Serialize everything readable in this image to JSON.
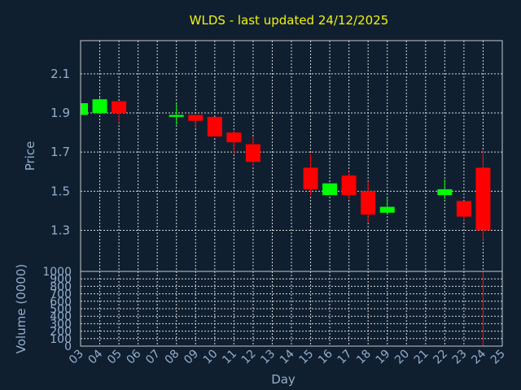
{
  "chart_data": {
    "type": "candlestick",
    "title": "WLDS - last updated 24/12/2025",
    "xlabel": "Day",
    "price_panel": {
      "ylabel": "Price",
      "yticks": [
        "2.1",
        "1.9",
        "1.7",
        "1.5",
        "1.3"
      ],
      "ylim": [
        1.09,
        2.27
      ],
      "grid": true
    },
    "volume_panel": {
      "ylabel": "Volume (0000)",
      "yticks": [
        "1000",
        "900",
        "800",
        "700",
        "600",
        "500",
        "400",
        "300",
        "200",
        "100",
        "0"
      ],
      "ylim": [
        0,
        1000
      ],
      "grid": true
    },
    "x_ticks": [
      "03",
      "04",
      "05",
      "06",
      "07",
      "08",
      "09",
      "10",
      "11",
      "12",
      "13",
      "14",
      "15",
      "16",
      "17",
      "18",
      "19",
      "20",
      "21",
      "22",
      "23",
      "24",
      "25"
    ],
    "up_color": "#00ff00",
    "down_color": "#ff0000",
    "candles": [
      {
        "day": 3,
        "open": 1.89,
        "high": 1.95,
        "low": 1.89,
        "close": 1.95
      },
      {
        "day": 4,
        "open": 1.9,
        "high": 1.98,
        "low": 1.9,
        "close": 1.97
      },
      {
        "day": 5,
        "open": 1.96,
        "high": 1.96,
        "low": 1.85,
        "close": 1.9
      },
      {
        "day": 8,
        "open": 1.88,
        "high": 1.95,
        "low": 1.84,
        "close": 1.89
      },
      {
        "day": 9,
        "open": 1.89,
        "high": 1.89,
        "low": 1.82,
        "close": 1.86
      },
      {
        "day": 10,
        "open": 1.88,
        "high": 1.88,
        "low": 1.78,
        "close": 1.78
      },
      {
        "day": 11,
        "open": 1.8,
        "high": 1.81,
        "low": 1.69,
        "close": 1.75
      },
      {
        "day": 12,
        "open": 1.74,
        "high": 1.78,
        "low": 1.63,
        "close": 1.65
      },
      {
        "day": 15,
        "open": 1.62,
        "high": 1.69,
        "low": 1.48,
        "close": 1.51
      },
      {
        "day": 16,
        "open": 1.48,
        "high": 1.54,
        "low": 1.48,
        "close": 1.54
      },
      {
        "day": 17,
        "open": 1.58,
        "high": 1.6,
        "low": 1.46,
        "close": 1.48
      },
      {
        "day": 18,
        "open": 1.5,
        "high": 1.55,
        "low": 1.34,
        "close": 1.38
      },
      {
        "day": 19,
        "open": 1.39,
        "high": 1.47,
        "low": 1.38,
        "close": 1.42
      },
      {
        "day": 22,
        "open": 1.48,
        "high": 1.56,
        "low": 1.46,
        "close": 1.51
      },
      {
        "day": 23,
        "open": 1.45,
        "high": 1.45,
        "low": 1.35,
        "close": 1.37
      },
      {
        "day": 24,
        "open": 1.62,
        "high": 1.71,
        "low": 1.25,
        "close": 1.3
      }
    ],
    "volumes": [
      {
        "day": 3,
        "value": 0
      },
      {
        "day": 4,
        "value": 0
      },
      {
        "day": 5,
        "value": 0
      },
      {
        "day": 8,
        "value": 0
      },
      {
        "day": 9,
        "value": 0
      },
      {
        "day": 10,
        "value": 0
      },
      {
        "day": 11,
        "value": 5,
        "color": "#ff0000"
      },
      {
        "day": 12,
        "value": 5,
        "color": "#ff0000"
      },
      {
        "day": 15,
        "value": 10,
        "color": "#ff0000"
      },
      {
        "day": 16,
        "value": 0
      },
      {
        "day": 17,
        "value": 0
      },
      {
        "day": 18,
        "value": 5,
        "color": "#ff0000"
      },
      {
        "day": 19,
        "value": 0
      },
      {
        "day": 22,
        "value": 0
      },
      {
        "day": 23,
        "value": 5,
        "color": "#ff0000"
      },
      {
        "day": 24,
        "value": 1000,
        "color": "#ff0000"
      }
    ]
  }
}
